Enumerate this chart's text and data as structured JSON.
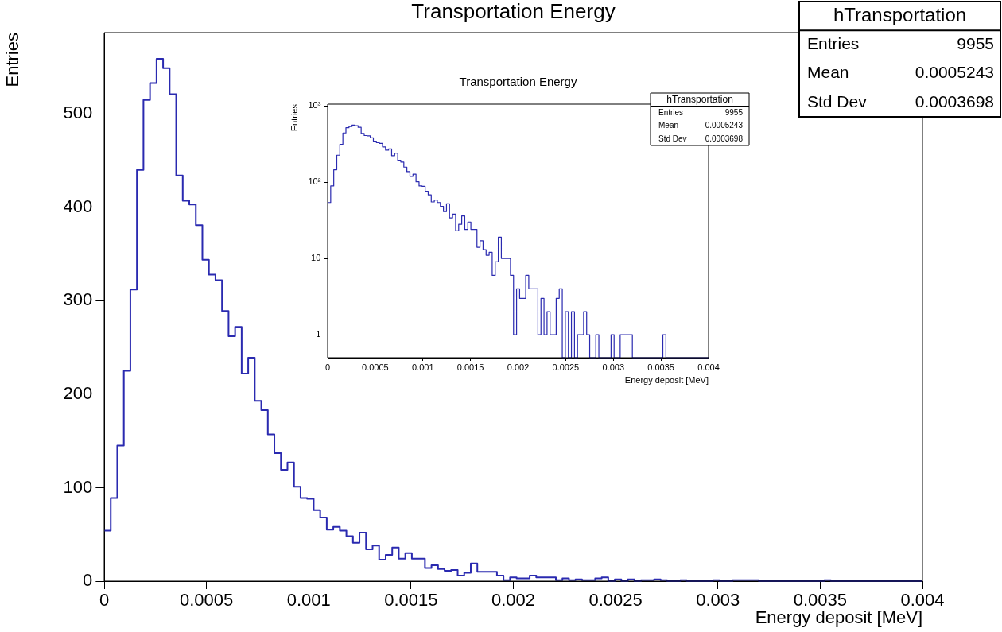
{
  "chart_data": [
    {
      "type": "histogram",
      "title": "Transportation Energy",
      "xlabel": "Energy deposit [MeV]",
      "ylabel": "Entries",
      "color": "#2a2ab0",
      "bins": [
        0,
        3.2e-05,
        6.4e-05,
        9.6e-05,
        0.000128,
        0.00016,
        0.000192,
        0.000224,
        0.000256,
        0.000288,
        0.00032,
        0.000352,
        0.000384,
        0.000416,
        0.000448,
        0.00048,
        0.000512,
        0.000544,
        0.000576,
        0.000608,
        0.00064,
        0.000672,
        0.000704,
        0.000736,
        0.000768,
        0.0008,
        0.000832,
        0.000864,
        0.000896,
        0.000928,
        0.00096,
        0.000992,
        0.001024,
        0.001056,
        0.001088,
        0.00112,
        0.001152,
        0.001184,
        0.001216,
        0.001248,
        0.00128,
        0.001312,
        0.001344,
        0.001376,
        0.001408,
        0.00144,
        0.001472,
        0.001504,
        0.001536,
        0.001568,
        0.0016,
        0.001632,
        0.001664,
        0.001696,
        0.001728,
        0.00176,
        0.001792,
        0.001824,
        0.001856,
        0.001888,
        0.00192,
        0.001952,
        0.001984,
        0.002016,
        0.002048,
        0.00208,
        0.002112,
        0.002144,
        0.002176,
        0.002208,
        0.00224,
        0.002272,
        0.002304,
        0.002336,
        0.002368,
        0.0024,
        0.002432,
        0.002464,
        0.002496,
        0.002528,
        0.00256,
        0.002592,
        0.002624,
        0.002656,
        0.002688,
        0.00272,
        0.002752,
        0.002784,
        0.002816,
        0.002848,
        0.00288,
        0.002912,
        0.002944,
        0.002976,
        0.003008,
        0.00304,
        0.003072,
        0.003104,
        0.003136,
        0.003168,
        0.0032,
        0.003232,
        0.003264,
        0.003296,
        0.003328,
        0.00336,
        0.003392,
        0.003424,
        0.003456,
        0.003488,
        0.00352,
        0.003552,
        0.003584,
        0.003616,
        0.003648,
        0.00368,
        0.003712,
        0.003744,
        0.003776,
        0.003808,
        0.00384,
        0.003872,
        0.003904,
        0.003936,
        0.003968,
        0.004
      ],
      "values": [
        54,
        89,
        145,
        225,
        312,
        440,
        515,
        533,
        559,
        549,
        521,
        434,
        407,
        403,
        381,
        344,
        328,
        322,
        289,
        262,
        272,
        222,
        239,
        193,
        183,
        157,
        137,
        119,
        127,
        101,
        89,
        88,
        76,
        68,
        55,
        58,
        54,
        48,
        41,
        52,
        34,
        38,
        23,
        28,
        36,
        24,
        30,
        24,
        24,
        14,
        17,
        13,
        11,
        12,
        6,
        9,
        19,
        10,
        10,
        10,
        6,
        1,
        4,
        3,
        3,
        6,
        4,
        4,
        4,
        1,
        3,
        1,
        2,
        1,
        1,
        3,
        4,
        0,
        2,
        0,
        2,
        0,
        1,
        1,
        2,
        1,
        0,
        0,
        1,
        0,
        0,
        0,
        0,
        1,
        0,
        0,
        1,
        1,
        1,
        1,
        0,
        0,
        0,
        0,
        0,
        0,
        0,
        0,
        0,
        0,
        1,
        0,
        0,
        0,
        0,
        0,
        0,
        0,
        0,
        0,
        0,
        0,
        0,
        0,
        0
      ],
      "xlim": [
        0,
        0.004
      ],
      "xticks": [
        0,
        0.0005,
        0.001,
        0.0015,
        0.002,
        0.0025,
        0.003,
        0.0035,
        0.004
      ],
      "ylim": [
        0,
        587
      ],
      "yticks": [
        0,
        100,
        200,
        300,
        400,
        500
      ],
      "grid": false,
      "legend": false,
      "annotations": [
        "hTransportation",
        "Entries",
        "9955",
        "Mean",
        "0.0005243",
        "Std Dev",
        "0.0003698"
      ]
    },
    {
      "type": "histogram",
      "title": "Transportation Energy",
      "xlabel": "Energy deposit [MeV]",
      "ylabel": "Entries",
      "color": "#2a2ab0",
      "bins": [
        0,
        3.2e-05,
        6.4e-05,
        9.6e-05,
        0.000128,
        0.00016,
        0.000192,
        0.000224,
        0.000256,
        0.000288,
        0.00032,
        0.000352,
        0.000384,
        0.000416,
        0.000448,
        0.00048,
        0.000512,
        0.000544,
        0.000576,
        0.000608,
        0.00064,
        0.000672,
        0.000704,
        0.000736,
        0.000768,
        0.0008,
        0.000832,
        0.000864,
        0.000896,
        0.000928,
        0.00096,
        0.000992,
        0.001024,
        0.001056,
        0.001088,
        0.00112,
        0.001152,
        0.001184,
        0.001216,
        0.001248,
        0.00128,
        0.001312,
        0.001344,
        0.001376,
        0.001408,
        0.00144,
        0.001472,
        0.001504,
        0.001536,
        0.001568,
        0.0016,
        0.001632,
        0.001664,
        0.001696,
        0.001728,
        0.00176,
        0.001792,
        0.001824,
        0.001856,
        0.001888,
        0.00192,
        0.001952,
        0.001984,
        0.002016,
        0.002048,
        0.00208,
        0.002112,
        0.002144,
        0.002176,
        0.002208,
        0.00224,
        0.002272,
        0.002304,
        0.002336,
        0.002368,
        0.0024,
        0.002432,
        0.002464,
        0.002496,
        0.002528,
        0.00256,
        0.002592,
        0.002624,
        0.002656,
        0.002688,
        0.00272,
        0.002752,
        0.002784,
        0.002816,
        0.002848,
        0.00288,
        0.002912,
        0.002944,
        0.002976,
        0.003008,
        0.00304,
        0.003072,
        0.003104,
        0.003136,
        0.003168,
        0.0032,
        0.003232,
        0.003264,
        0.003296,
        0.003328,
        0.00336,
        0.003392,
        0.003424,
        0.003456,
        0.003488,
        0.00352,
        0.003552,
        0.003584,
        0.003616,
        0.003648,
        0.00368,
        0.003712,
        0.003744,
        0.003776,
        0.003808,
        0.00384,
        0.003872,
        0.003904,
        0.003936,
        0.003968,
        0.004
      ],
      "values": [
        54,
        89,
        145,
        225,
        312,
        440,
        515,
        533,
        559,
        549,
        521,
        434,
        407,
        403,
        381,
        344,
        328,
        322,
        289,
        262,
        272,
        222,
        239,
        193,
        183,
        157,
        137,
        119,
        127,
        101,
        89,
        88,
        76,
        68,
        55,
        58,
        54,
        48,
        41,
        52,
        34,
        38,
        23,
        28,
        36,
        24,
        30,
        24,
        24,
        14,
        17,
        13,
        11,
        12,
        6,
        9,
        19,
        10,
        10,
        10,
        6,
        1,
        4,
        3,
        3,
        6,
        4,
        4,
        4,
        1,
        3,
        1,
        2,
        1,
        1,
        3,
        4,
        null,
        2,
        null,
        2,
        null,
        1,
        1,
        2,
        1,
        null,
        null,
        1,
        null,
        null,
        null,
        null,
        1,
        null,
        null,
        1,
        1,
        1,
        1,
        null,
        null,
        null,
        null,
        null,
        null,
        null,
        null,
        null,
        null,
        1,
        null,
        null,
        null,
        null,
        null,
        null,
        null,
        null,
        null,
        null,
        null,
        null,
        null,
        null
      ],
      "xlim": [
        0,
        0.004
      ],
      "xticks": [
        0,
        0.0005,
        0.001,
        0.0015,
        0.002,
        0.0025,
        0.003,
        0.0035,
        0.004
      ],
      "ylim": [
        0.5,
        1050
      ],
      "yticks": [
        {
          "value": 1,
          "label": "1"
        },
        {
          "value": 10,
          "label": "10"
        },
        {
          "value": 100,
          "label": "10²"
        },
        {
          "value": 1000,
          "label": "10³"
        }
      ],
      "log": "y",
      "grid": false,
      "legend": false,
      "annotations": [
        "hTransportation",
        "Entries",
        "9955",
        "Mean",
        "0.0005243",
        "Std Dev",
        "0.0003698"
      ]
    }
  ]
}
